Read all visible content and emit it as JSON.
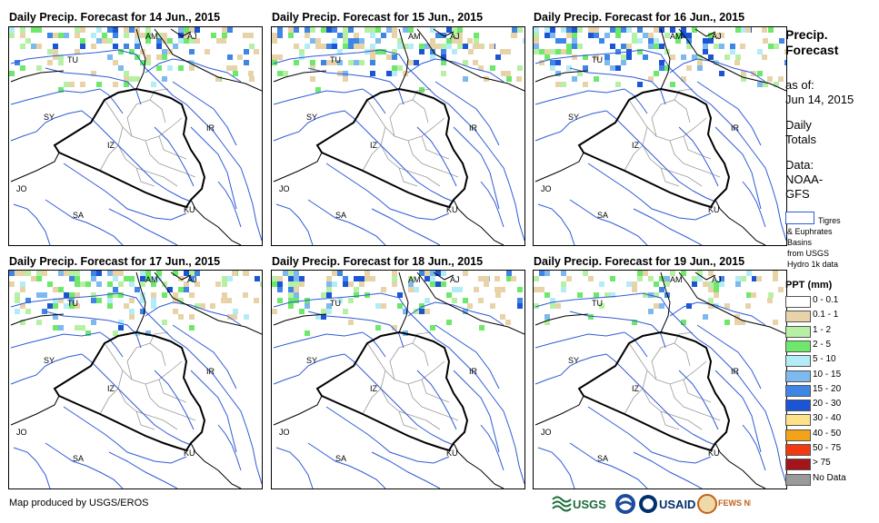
{
  "panels": [
    {
      "title": "Daily Precip. Forecast for 14 Jun., 2015"
    },
    {
      "title": "Daily Precip. Forecast for 15 Jun., 2015"
    },
    {
      "title": "Daily Precip. Forecast for 16 Jun., 2015"
    },
    {
      "title": "Daily Precip. Forecast for 17 Jun., 2015"
    },
    {
      "title": "Daily Precip. Forecast for 18 Jun., 2015"
    },
    {
      "title": "Daily Precip. Forecast for 19 Jun., 2015"
    }
  ],
  "country_labels": [
    "AM",
    "AJ",
    "TU",
    "SY",
    "IR",
    "IZ",
    "JO",
    "SA",
    "KU"
  ],
  "legend": {
    "title_line1": "Precip.",
    "title_line2": "Forecast",
    "asof_line1": "as of:",
    "asof_line2": "Jun 14, 2015",
    "daily_line1": "Daily",
    "daily_line2": "Totals",
    "data_line1": "Data:",
    "data_line2": "NOAA-",
    "data_line3": "GFS",
    "basin_line1": "Tigres",
    "basin_line2": "& Euphrates",
    "basin_line3": "Basins",
    "basin_line4": "from USGS",
    "basin_line5": "Hydro 1k data",
    "ppt_title": "PPT (mm)",
    "classes": [
      {
        "label": "0 - 0.1",
        "color": "#ffffff"
      },
      {
        "label": "0.1 - 1",
        "color": "#e8d3a9"
      },
      {
        "label": "1 - 2",
        "color": "#b6f0a4"
      },
      {
        "label": "2 - 5",
        "color": "#6ee86a"
      },
      {
        "label": "5 - 10",
        "color": "#b3ecf7"
      },
      {
        "label": "10 - 15",
        "color": "#7db8ef"
      },
      {
        "label": "15 - 20",
        "color": "#3f85e6"
      },
      {
        "label": "20 - 30",
        "color": "#1b55d6"
      },
      {
        "label": "30 - 40",
        "color": "#fde28a"
      },
      {
        "label": "40 - 50",
        "color": "#f5a316"
      },
      {
        "label": "50 - 75",
        "color": "#f23a10"
      },
      {
        "label": "> 75",
        "color": "#a3141b"
      },
      {
        "label": "No Data",
        "color": "#9a9a9a"
      }
    ]
  },
  "footer": {
    "credit": "Map produced by USGS/EROS"
  },
  "logos": {
    "usgs": "USGS",
    "usaid": "USAID",
    "fewsnet": "FEWS NET"
  },
  "colors": {
    "basin": "#2e5bd6",
    "border": "#000000",
    "province": "#9a9a9a"
  }
}
